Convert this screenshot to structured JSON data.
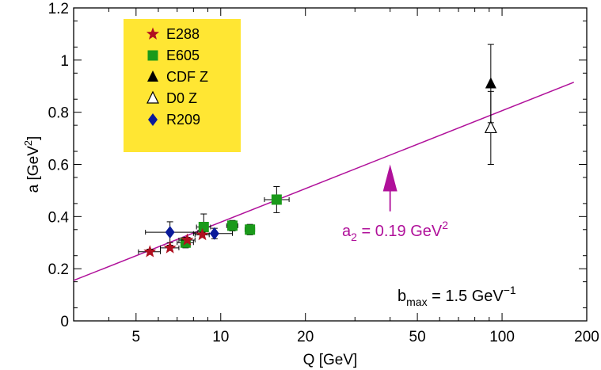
{
  "chart_data": {
    "type": "scatter",
    "xscale": "log",
    "xlim": [
      3,
      200
    ],
    "ylim": [
      0,
      1.2
    ],
    "grid": false,
    "legend_placement": "top-left",
    "xlabel": "Q [GeV]",
    "ylabel": {
      "main": "a [GeV",
      "sup": "2",
      "end": "]"
    },
    "xticks": [
      5,
      10,
      20,
      50,
      100,
      200
    ],
    "xtick_labels": [
      "5",
      "10",
      "20",
      "50",
      "100",
      "200"
    ],
    "yticks": [
      0,
      0.2,
      0.4,
      0.6,
      0.8,
      1,
      1.2
    ],
    "ytick_labels": [
      "0",
      "0.2",
      "0.4",
      "0.6",
      "0.8",
      "1",
      "1.2"
    ],
    "colors": {
      "fit_line": "#b0109a",
      "legend_bg": "#ffe633",
      "E288": "#b01020",
      "E605": "#1a9a1a",
      "CDF Z": "#000000",
      "D0 Z": "#000000",
      "R209": "#0a1a9a"
    },
    "series": [
      {
        "name": "E288",
        "marker": "star",
        "points": [
          {
            "x": 5.6,
            "y": 0.265,
            "xerr": [
              0.5,
              0.5
            ],
            "yerr": [
              0.01,
              0.01
            ]
          },
          {
            "x": 6.6,
            "y": 0.28,
            "xerr": [
              0.5,
              0.5
            ],
            "yerr": [
              0.01,
              0.01
            ]
          },
          {
            "x": 7.6,
            "y": 0.31,
            "xerr": [
              0.5,
              0.5
            ],
            "yerr": [
              0.01,
              0.01
            ]
          },
          {
            "x": 8.6,
            "y": 0.33,
            "xerr": [
              0.5,
              0.5
            ],
            "yerr": [
              0.01,
              0.01
            ]
          }
        ]
      },
      {
        "name": "E605",
        "marker": "square",
        "points": [
          {
            "x": 7.5,
            "y": 0.3,
            "xerr": [
              0.5,
              0.5
            ],
            "yerr": [
              0.02,
              0.02
            ]
          },
          {
            "x": 8.7,
            "y": 0.36,
            "xerr": [
              0.5,
              0.5
            ],
            "yerr": [
              0.03,
              0.05
            ]
          },
          {
            "x": 11,
            "y": 0.365,
            "xerr": [
              0.5,
              0.5
            ],
            "yerr": [
              0.02,
              0.02
            ]
          },
          {
            "x": 12.7,
            "y": 0.35,
            "xerr": [
              0.5,
              0.5
            ],
            "yerr": [
              0.02,
              0.02
            ]
          },
          {
            "x": 15.8,
            "y": 0.465,
            "xerr": [
              1.5,
              1.7
            ],
            "yerr": [
              0.05,
              0.05
            ]
          }
        ]
      },
      {
        "name": "CDF Z",
        "marker": "triangle-filled",
        "points": [
          {
            "x": 91.2,
            "y": 0.91,
            "xerr": [
              0,
              0
            ],
            "yerr": [
              0.15,
              0.15
            ]
          }
        ]
      },
      {
        "name": "D0 Z",
        "marker": "triangle-open",
        "points": [
          {
            "x": 91.2,
            "y": 0.74,
            "xerr": [
              0,
              0
            ],
            "yerr": [
              0.14,
              0.14
            ]
          }
        ]
      },
      {
        "name": "R209",
        "marker": "diamond",
        "points": [
          {
            "x": 6.6,
            "y": 0.34,
            "xerr": [
              1.2,
              1.7
            ],
            "yerr": [
              0.04,
              0.04
            ]
          },
          {
            "x": 9.5,
            "y": 0.335,
            "xerr": [
              1.5,
              1.5
            ],
            "yerr": [
              0.02,
              0.02
            ]
          }
        ]
      }
    ],
    "fit_line": {
      "points": [
        {
          "x": 3,
          "y": 0.155
        },
        {
          "x": 180,
          "y": 0.915
        }
      ]
    },
    "annotations": {
      "a2": {
        "main": "a",
        "sub": "2",
        "rest": " = 0.19 GeV",
        "sup": "2",
        "arrow_x": 40,
        "arrow_y_tip": 0.6,
        "arrow_y_base": 0.42
      },
      "bmax": {
        "main": "b",
        "sub": "max",
        "rest": " = 1.5 GeV",
        "sup": "−1"
      }
    }
  }
}
